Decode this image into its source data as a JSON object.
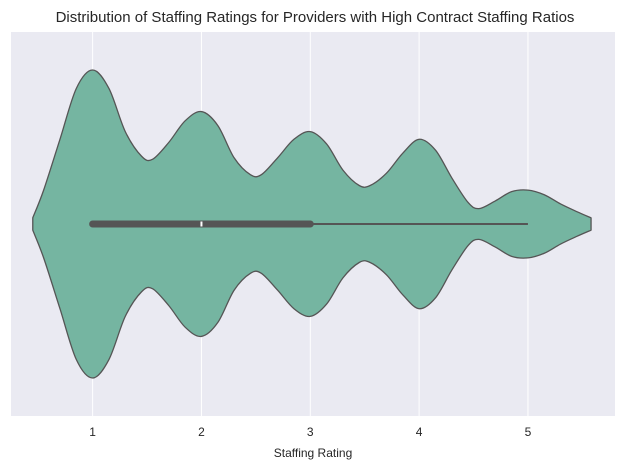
{
  "chart_data": {
    "type": "violin",
    "orientation": "horizontal",
    "title": "Distribution of Staffing Ratings for Providers with High Contract Staffing Ratios",
    "xlabel": "Staffing Rating",
    "ylabel": "",
    "xlim": [
      0.25,
      5.8
    ],
    "xticks": [
      1,
      2,
      3,
      4,
      5
    ],
    "grid": true,
    "colors": {
      "background": "#EAEAF2",
      "violin_fill": "#75B5A1",
      "violin_edge": "#555555",
      "box": "#555555",
      "median": "#ffffff",
      "grid": "#ffffff"
    },
    "density": {
      "x": [
        0.45,
        0.55,
        0.7,
        0.85,
        1.0,
        1.15,
        1.3,
        1.45,
        1.55,
        1.7,
        1.85,
        2.0,
        2.15,
        2.3,
        2.45,
        2.55,
        2.7,
        2.85,
        3.0,
        3.15,
        3.3,
        3.45,
        3.55,
        3.7,
        3.85,
        4.0,
        4.15,
        4.3,
        4.45,
        4.55,
        4.7,
        4.85,
        5.0,
        5.15,
        5.3,
        5.45,
        5.58
      ],
      "density": [
        0.04,
        0.22,
        0.55,
        0.88,
        1.0,
        0.88,
        0.6,
        0.44,
        0.42,
        0.53,
        0.67,
        0.73,
        0.64,
        0.43,
        0.32,
        0.32,
        0.43,
        0.55,
        0.6,
        0.52,
        0.35,
        0.25,
        0.25,
        0.33,
        0.46,
        0.55,
        0.48,
        0.3,
        0.14,
        0.1,
        0.15,
        0.21,
        0.22,
        0.19,
        0.13,
        0.08,
        0.04
      ]
    },
    "box": {
      "q1": 1,
      "median": 2,
      "q3": 3,
      "whisker_low": 1,
      "whisker_high": 5
    }
  }
}
